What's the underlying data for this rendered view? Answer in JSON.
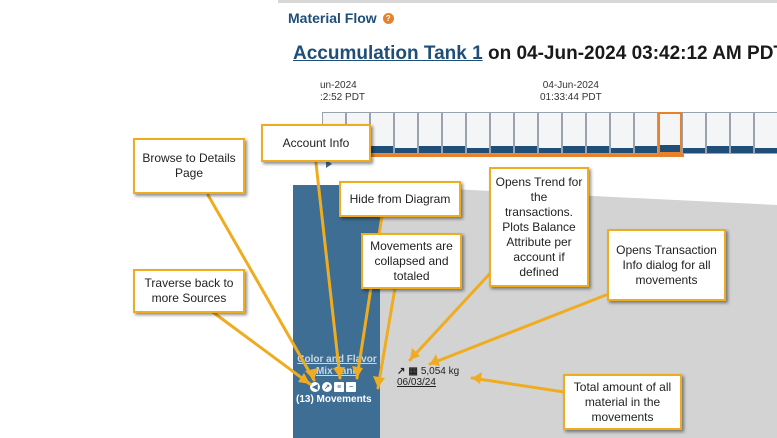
{
  "header": {
    "title": "Material Flow",
    "help_glyph": "?"
  },
  "subtitle": {
    "link": "Accumulation Tank 1",
    "rest": " on 04-Jun-2024 03:42:12 AM PDT"
  },
  "timeline": {
    "left_date": "un-2024",
    "left_time": ":2:52 PDT",
    "mid_date": "04-Jun-2024",
    "mid_time": "01:33:44 PDT"
  },
  "node": {
    "name": "Color and Flavor Mix Tank",
    "movements": "(13) Movements"
  },
  "transaction": {
    "amount": "5,054 kg",
    "date": "06/03/24"
  },
  "callouts": {
    "browse": "Browse to Details Page",
    "account": "Account Info",
    "hide": "Hide from Diagram",
    "trend": "Opens Trend for the transactions. Plots Balance Attribute per account if defined",
    "collapsed": "Movements are collapsed and totaled",
    "transaction_info": "Opens Transaction Info dialog for all movements",
    "traverse": "Traverse back to more Sources",
    "total": "Total amount of all material in the movements"
  },
  "colors": {
    "accent": "#e8822a",
    "callout_border": "#f0ac20",
    "brand": "#1f4e79",
    "source_bar": "#3e6e93"
  }
}
